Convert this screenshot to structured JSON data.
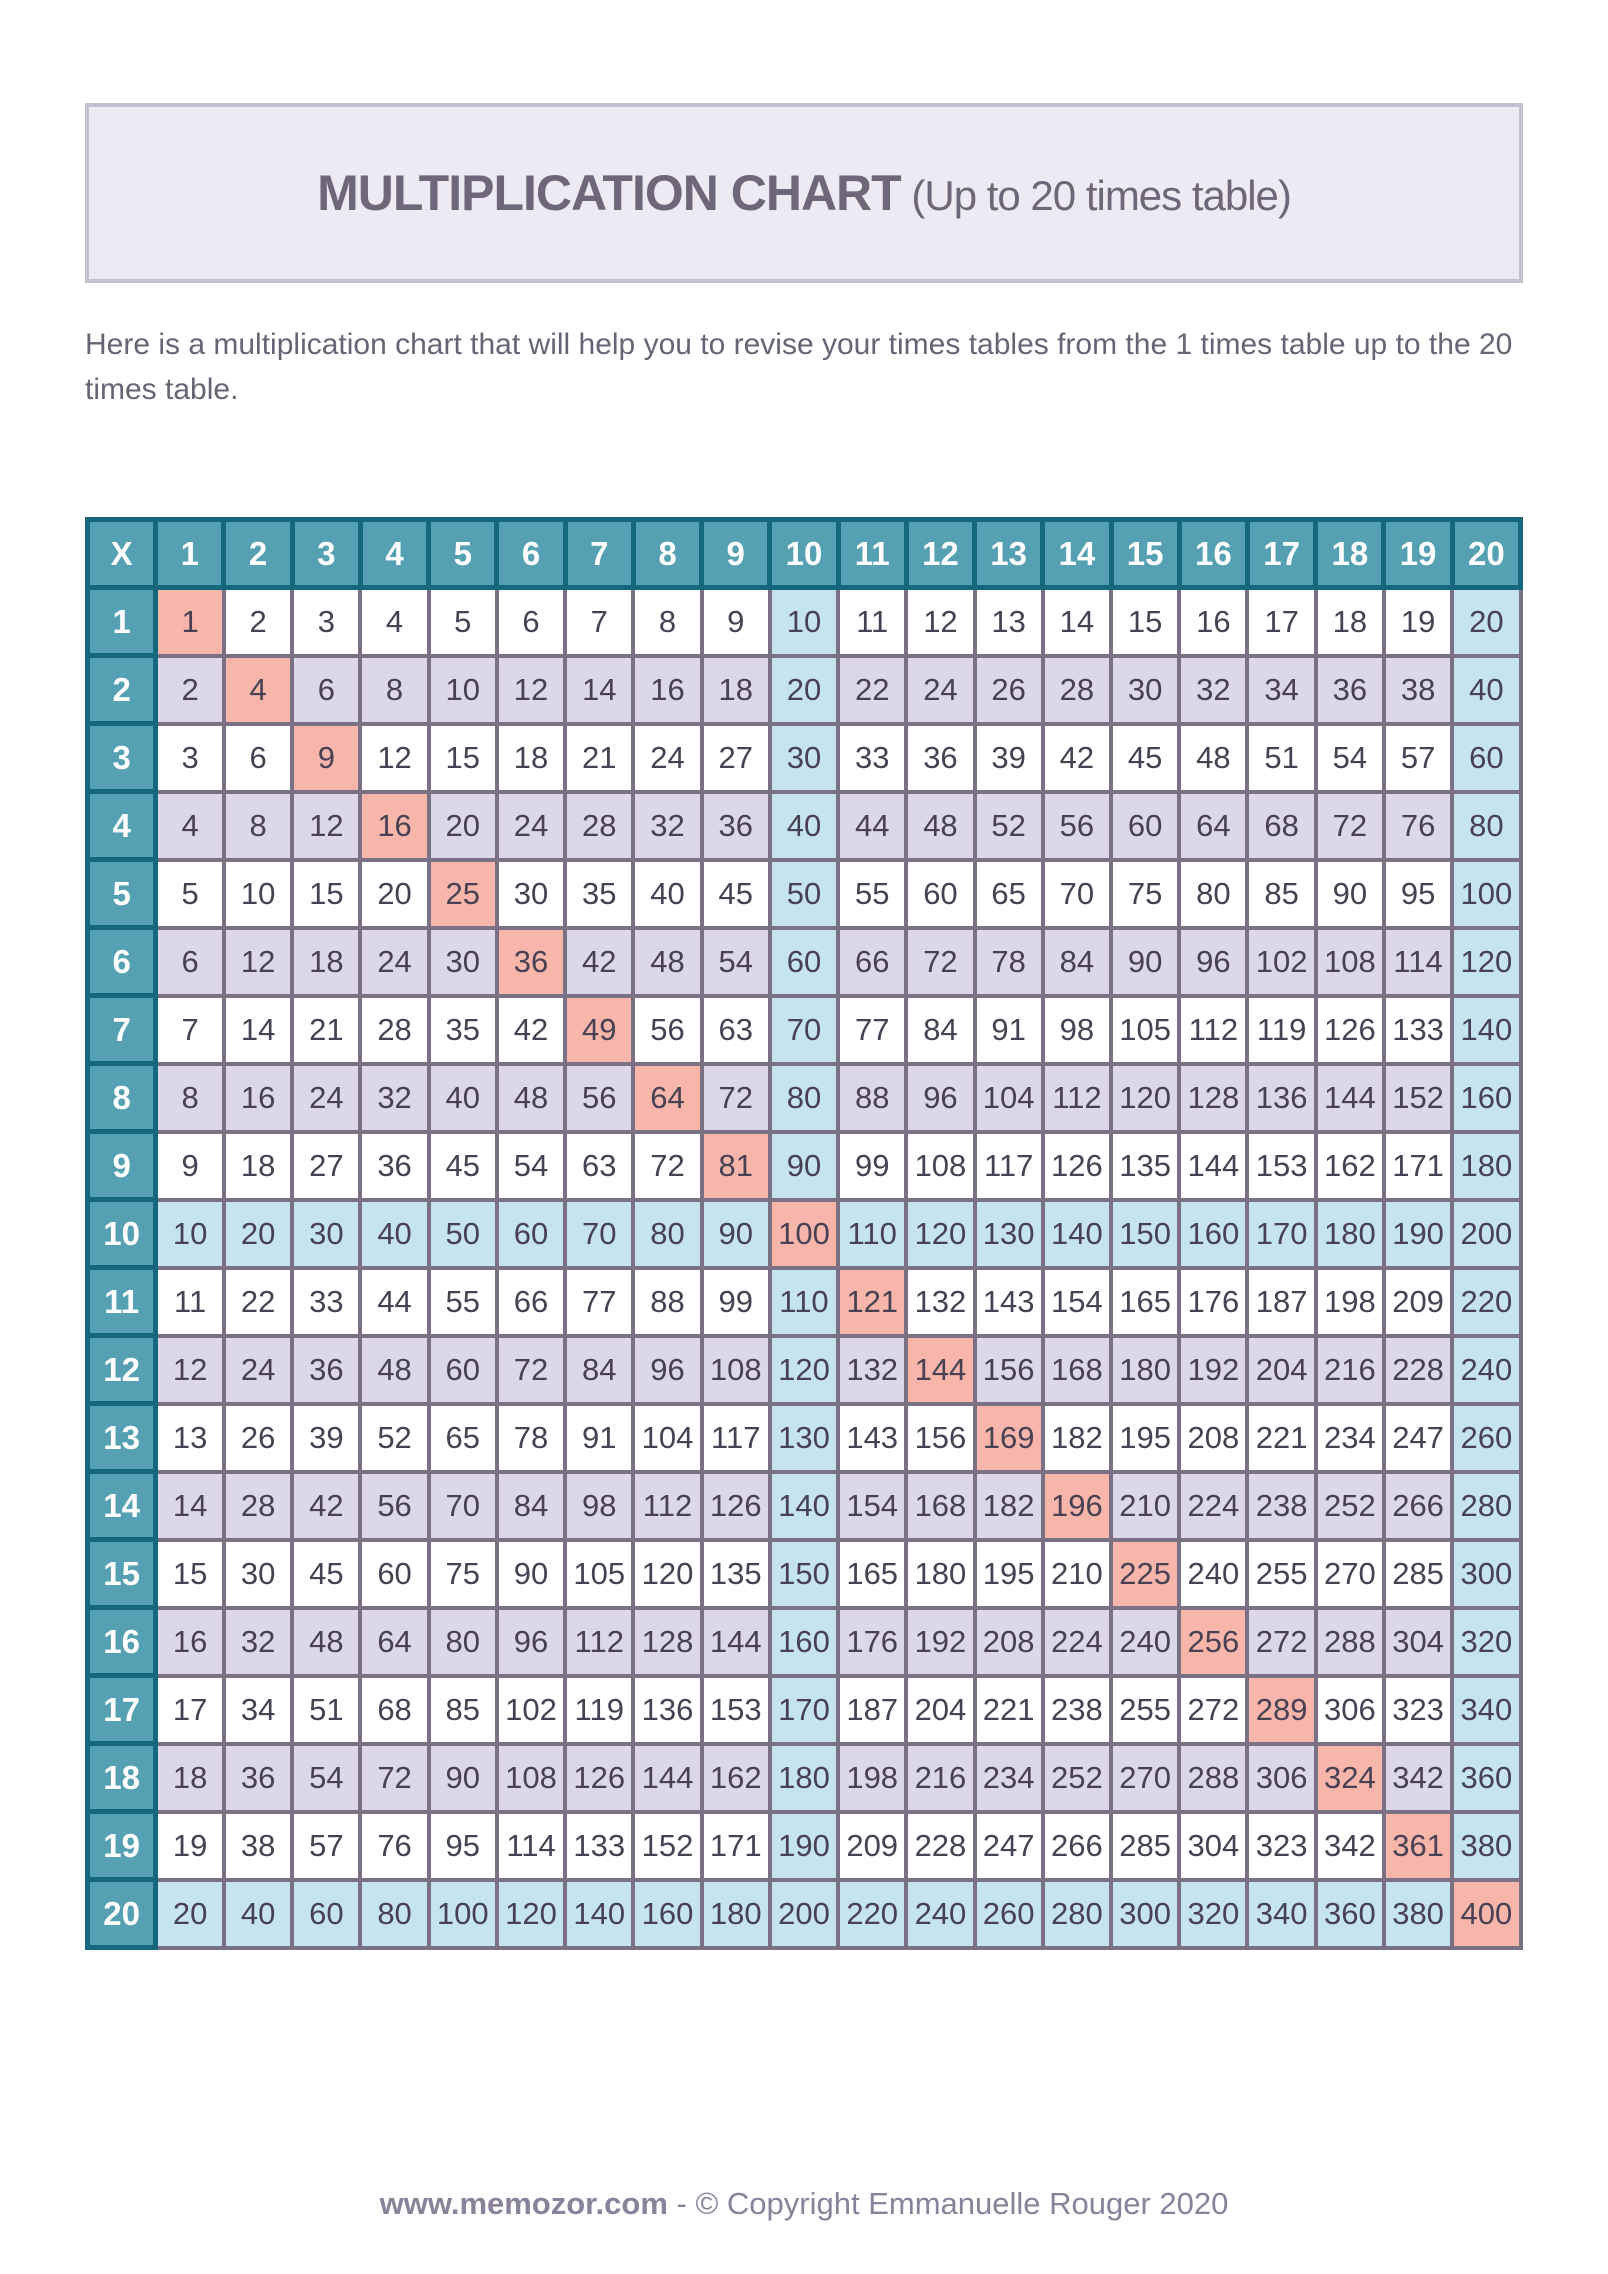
{
  "page": {
    "title_main": "MULTIPLICATION CHART",
    "title_sub": " (Up to 20 times table)",
    "description": "Here is a multiplication chart that will help you to revise your times tables from the 1 times table up to the 20 times table.",
    "footer_site": "www.memozor.com",
    "footer_sep": " - ",
    "footer_copyright": "© Copyright Emmanuelle Rouger 2020"
  },
  "colors": {
    "title_box_bg": "#ecebf4",
    "title_box_border": "#c3c1d2",
    "title_text": "#6f6779",
    "description_text": "#6a6275",
    "header_bg": "#56a0b3",
    "header_border": "#15677e",
    "header_text": "#ffffff",
    "body_border": "#7a7284",
    "body_text": "#474153",
    "row_even_bg": "#dcd8e9",
    "highlight_bg": "#c5e4ef",
    "diagonal_bg": "#f8b6ab",
    "footer_text": "#8a819b"
  },
  "table": {
    "corner_label": "X",
    "col_headers": [
      1,
      2,
      3,
      4,
      5,
      6,
      7,
      8,
      9,
      10,
      11,
      12,
      13,
      14,
      15,
      16,
      17,
      18,
      19,
      20
    ],
    "row_headers": [
      1,
      2,
      3,
      4,
      5,
      6,
      7,
      8,
      9,
      10,
      11,
      12,
      13,
      14,
      15,
      16,
      17,
      18,
      19,
      20
    ],
    "rows": [
      [
        1,
        2,
        3,
        4,
        5,
        6,
        7,
        8,
        9,
        10,
        11,
        12,
        13,
        14,
        15,
        16,
        17,
        18,
        19,
        20
      ],
      [
        2,
        4,
        6,
        8,
        10,
        12,
        14,
        16,
        18,
        20,
        22,
        24,
        26,
        28,
        30,
        32,
        34,
        36,
        38,
        40
      ],
      [
        3,
        6,
        9,
        12,
        15,
        18,
        21,
        24,
        27,
        30,
        33,
        36,
        39,
        42,
        45,
        48,
        51,
        54,
        57,
        60
      ],
      [
        4,
        8,
        12,
        16,
        20,
        24,
        28,
        32,
        36,
        40,
        44,
        48,
        52,
        56,
        60,
        64,
        68,
        72,
        76,
        80
      ],
      [
        5,
        10,
        15,
        20,
        25,
        30,
        35,
        40,
        45,
        50,
        55,
        60,
        65,
        70,
        75,
        80,
        85,
        90,
        95,
        100
      ],
      [
        6,
        12,
        18,
        24,
        30,
        36,
        42,
        48,
        54,
        60,
        66,
        72,
        78,
        84,
        90,
        96,
        102,
        108,
        114,
        120
      ],
      [
        7,
        14,
        21,
        28,
        35,
        42,
        49,
        56,
        63,
        70,
        77,
        84,
        91,
        98,
        105,
        112,
        119,
        126,
        133,
        140
      ],
      [
        8,
        16,
        24,
        32,
        40,
        48,
        56,
        64,
        72,
        80,
        88,
        96,
        104,
        112,
        120,
        128,
        136,
        144,
        152,
        160
      ],
      [
        9,
        18,
        27,
        36,
        45,
        54,
        63,
        72,
        81,
        90,
        99,
        108,
        117,
        126,
        135,
        144,
        153,
        162,
        171,
        180
      ],
      [
        10,
        20,
        30,
        40,
        50,
        60,
        70,
        80,
        90,
        100,
        110,
        120,
        130,
        140,
        150,
        160,
        170,
        180,
        190,
        200
      ],
      [
        11,
        22,
        33,
        44,
        55,
        66,
        77,
        88,
        99,
        110,
        121,
        132,
        143,
        154,
        165,
        176,
        187,
        198,
        209,
        220
      ],
      [
        12,
        24,
        36,
        48,
        60,
        72,
        84,
        96,
        108,
        120,
        132,
        144,
        156,
        168,
        180,
        192,
        204,
        216,
        228,
        240
      ],
      [
        13,
        26,
        39,
        52,
        65,
        78,
        91,
        104,
        117,
        130,
        143,
        156,
        169,
        182,
        195,
        208,
        221,
        234,
        247,
        260
      ],
      [
        14,
        28,
        42,
        56,
        70,
        84,
        98,
        112,
        126,
        140,
        154,
        168,
        182,
        196,
        210,
        224,
        238,
        252,
        266,
        280
      ],
      [
        15,
        30,
        45,
        60,
        75,
        90,
        105,
        120,
        135,
        150,
        165,
        180,
        195,
        210,
        225,
        240,
        255,
        270,
        285,
        300
      ],
      [
        16,
        32,
        48,
        64,
        80,
        96,
        112,
        128,
        144,
        160,
        176,
        192,
        208,
        224,
        240,
        256,
        272,
        288,
        304,
        320
      ],
      [
        17,
        34,
        51,
        68,
        85,
        102,
        119,
        136,
        153,
        170,
        187,
        204,
        221,
        238,
        255,
        272,
        289,
        306,
        323,
        340
      ],
      [
        18,
        36,
        54,
        72,
        90,
        108,
        126,
        144,
        162,
        180,
        198,
        216,
        234,
        252,
        270,
        288,
        306,
        324,
        342,
        360
      ],
      [
        19,
        38,
        57,
        76,
        95,
        114,
        133,
        152,
        171,
        190,
        209,
        228,
        247,
        266,
        285,
        304,
        323,
        342,
        361,
        380
      ],
      [
        20,
        40,
        60,
        80,
        100,
        120,
        140,
        160,
        180,
        200,
        220,
        240,
        260,
        280,
        300,
        320,
        340,
        360,
        380,
        400
      ]
    ]
  }
}
